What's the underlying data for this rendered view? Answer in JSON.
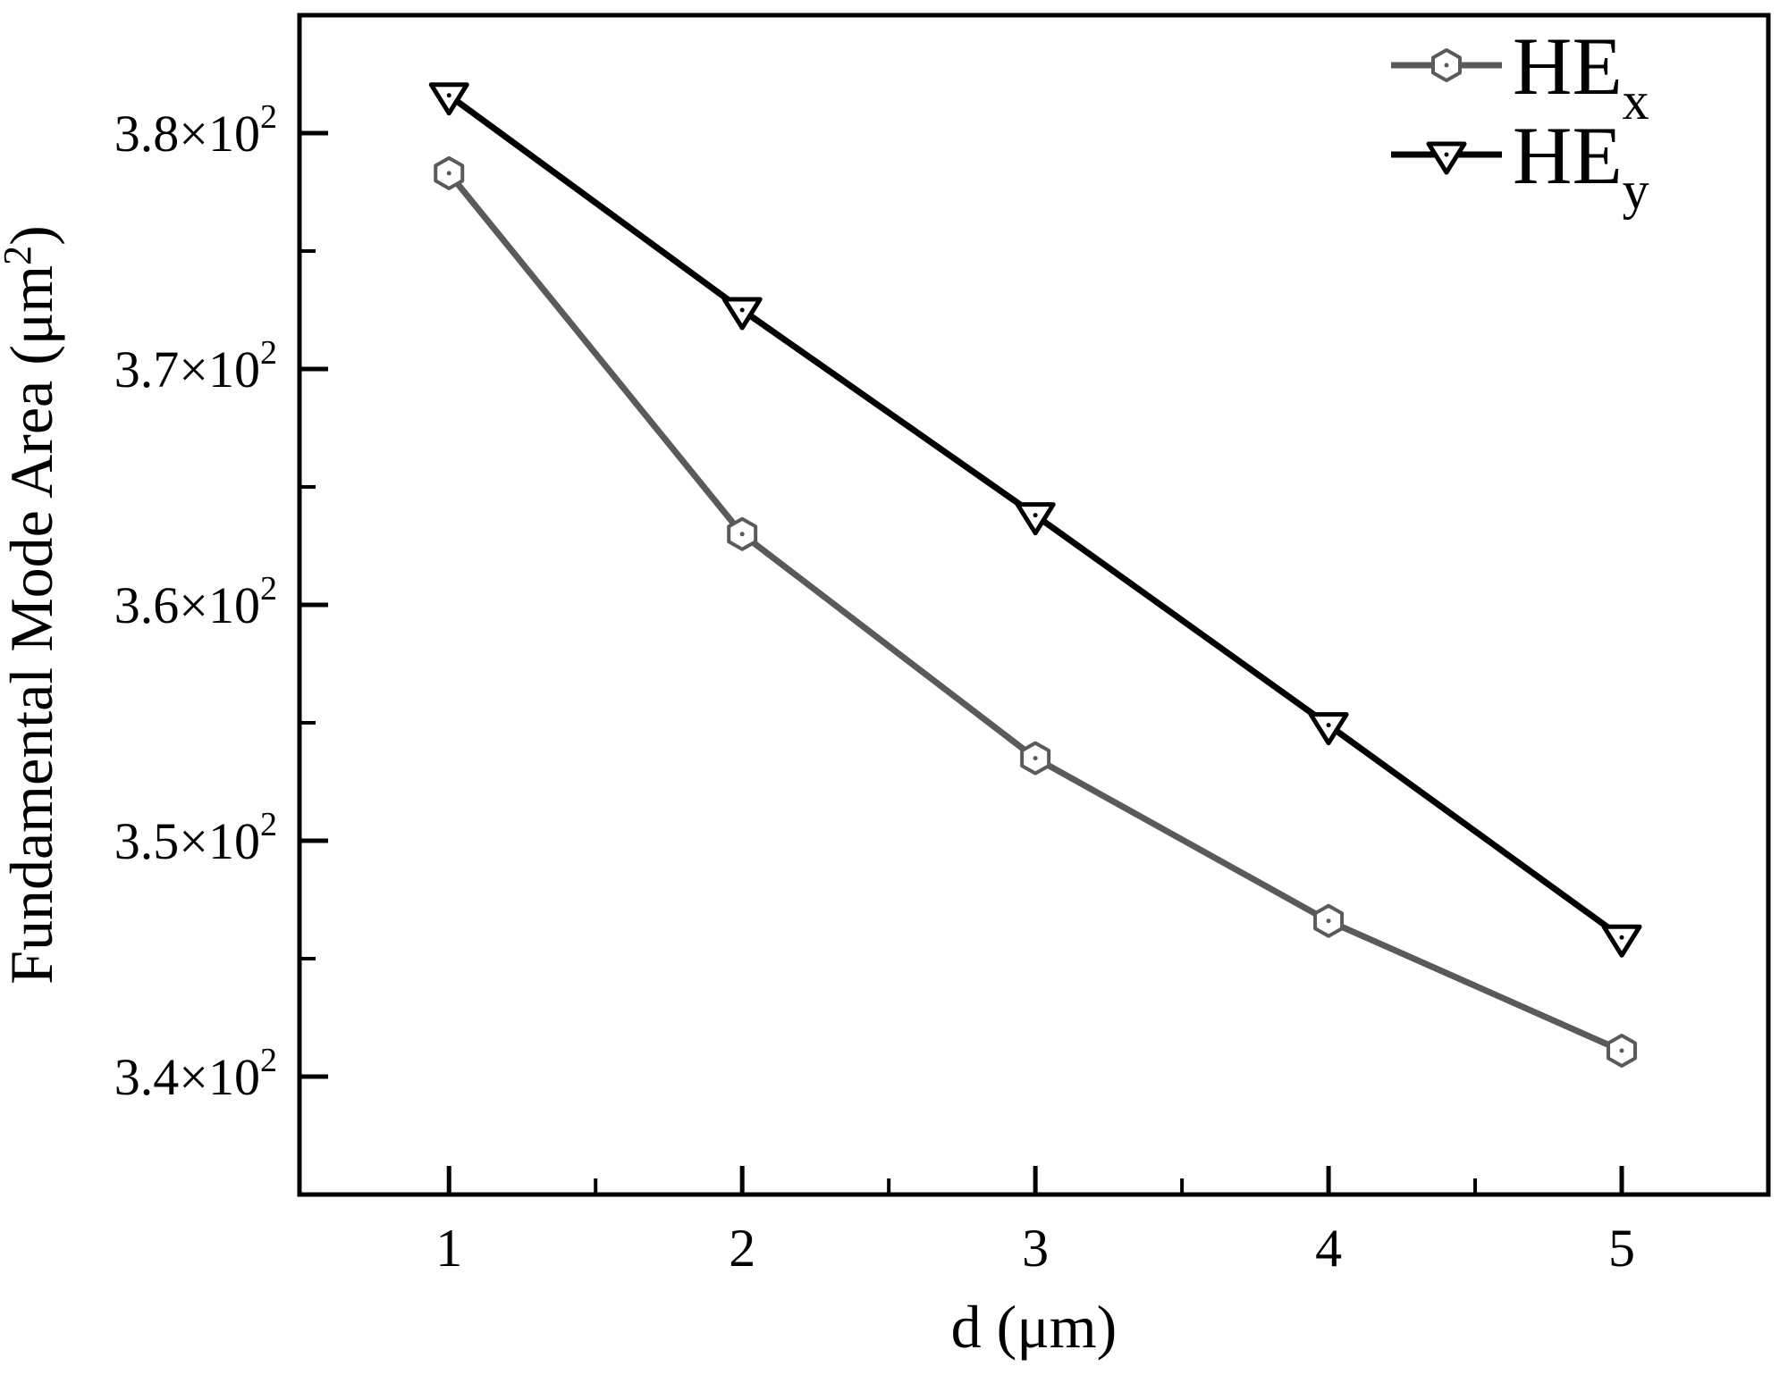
{
  "chart_data": {
    "type": "line",
    "title": "",
    "xlabel": "d (μm)",
    "ylabel": {
      "pre": "Fundamental Mode Area (μm",
      "sup": "2",
      "post": ")"
    },
    "x": [
      1,
      2,
      3,
      4,
      5
    ],
    "series": [
      {
        "name": "HEx",
        "legend_main": "HE",
        "legend_sub": "x",
        "color": "#5a5a5a",
        "marker": "hexagon",
        "values": [
          378.3,
          363.0,
          353.5,
          346.6,
          341.1
        ]
      },
      {
        "name": "HEy",
        "legend_main": "HE",
        "legend_sub": "y",
        "color": "#000000",
        "marker": "triangle-down",
        "values": [
          381.6,
          372.5,
          363.8,
          354.9,
          345.9
        ]
      }
    ],
    "xlim": [
      0.49,
      5.5
    ],
    "ylim": [
      335,
      385
    ],
    "x_major_ticks": [
      1,
      2,
      3,
      4,
      5
    ],
    "x_tick_labels": [
      "1",
      "2",
      "3",
      "4",
      "5"
    ],
    "x_minor_ticks": [
      1.5,
      2.5,
      3.5,
      4.5
    ],
    "y_major_ticks": [
      340,
      350,
      360,
      370,
      380
    ],
    "y_tick_labels": [
      {
        "base": "3.4×10",
        "exp": "2"
      },
      {
        "base": "3.5×10",
        "exp": "2"
      },
      {
        "base": "3.6×10",
        "exp": "2"
      },
      {
        "base": "3.7×10",
        "exp": "2"
      },
      {
        "base": "3.8×10",
        "exp": "2"
      }
    ],
    "y_minor_ticks": [
      345,
      355,
      365,
      375
    ],
    "grid": false,
    "legend_position": "top-right",
    "frame_color": "#000000",
    "background": "#ffffff"
  }
}
